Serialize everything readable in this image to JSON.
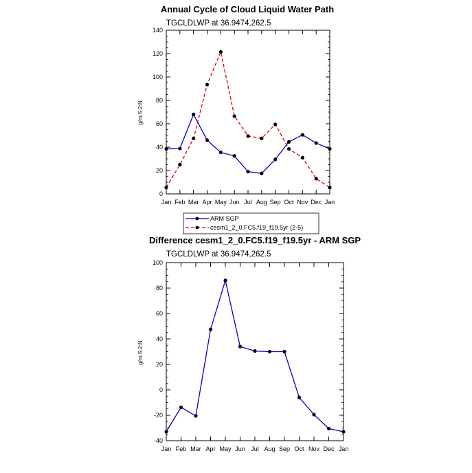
{
  "chart_data": [
    {
      "type": "line",
      "title": "Annual Cycle of Cloud Liquid Water Path",
      "subtitle": "TGCLDLWP at 36.9474,262.5",
      "xlabel": "",
      "ylabel": "g/m:S:2:N:",
      "categories": [
        "Jan",
        "Feb",
        "Mar",
        "Apr",
        "May",
        "Jun",
        "Jul",
        "Aug",
        "Sep",
        "Oct",
        "Nov",
        "Dec",
        "Jan"
      ],
      "ylim": [
        0,
        140
      ],
      "yticks": [
        0,
        20,
        40,
        60,
        80,
        100,
        120,
        140
      ],
      "legend_position": "bottom-left",
      "series": [
        {
          "name": "ARM SGP",
          "color": "#0000cc",
          "dash": "solid",
          "values": [
            38.5,
            38.8,
            68.0,
            46.0,
            35.5,
            32.5,
            19.0,
            17.5,
            29.5,
            44.5,
            50.5,
            43.5,
            38.5
          ]
        },
        {
          "name": "cesm1_2_0.FC5.f19_f19.5yr (2-5)",
          "color": "#e00000",
          "dash": "dashed",
          "values": [
            5.5,
            25.0,
            47.5,
            93.5,
            121.5,
            66.5,
            49.5,
            47.5,
            59.5,
            38.5,
            31.0,
            13.0,
            5.5
          ]
        }
      ]
    },
    {
      "type": "line",
      "title": "Difference cesm1_2_0.FC5.f19_f19.5yr - ARM SGP",
      "subtitle": "TGCLDLWP at 36.9474,262.5",
      "xlabel": "",
      "ylabel": "g/m:S:2:N:",
      "categories": [
        "Jan",
        "Feb",
        "Mar",
        "Apr",
        "May",
        "Jun",
        "Jul",
        "Aug",
        "Sep",
        "Oct",
        "Nov",
        "Dec",
        "Jan"
      ],
      "ylim": [
        -40,
        100
      ],
      "yticks": [
        -40,
        -20,
        0,
        20,
        40,
        60,
        80,
        100
      ],
      "series": [
        {
          "name": "",
          "color": "#0000cc",
          "dash": "solid",
          "values": [
            -33.0,
            -13.8,
            -20.5,
            47.5,
            86.0,
            34.0,
            30.5,
            30.0,
            30.0,
            -6.0,
            -19.5,
            -30.5,
            -33.0
          ]
        }
      ]
    }
  ]
}
